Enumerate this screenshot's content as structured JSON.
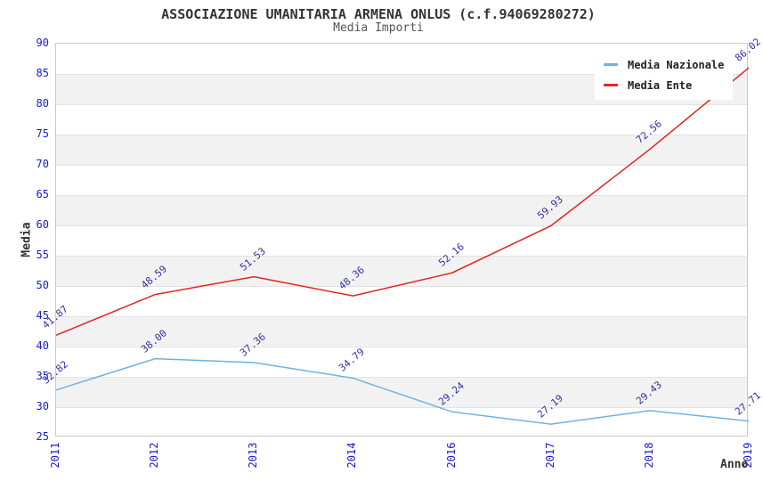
{
  "chart_data": {
    "type": "line",
    "title": "ASSOCIAZIONE UMANITARIA ARMENA ONLUS (c.f.94069280272)",
    "subtitle": "Media Importi",
    "xlabel": "Anno",
    "ylabel": "Media",
    "categories": [
      "2011",
      "2012",
      "2013",
      "2014",
      "2016",
      "2017",
      "2018",
      "2019"
    ],
    "series": [
      {
        "name": "Media Nazionale",
        "color": "#6fb1e2",
        "values": [
          32.82,
          38.0,
          37.36,
          34.79,
          29.24,
          27.19,
          29.43,
          27.71
        ]
      },
      {
        "name": "Media Ente",
        "color": "#e42320",
        "values": [
          41.87,
          48.59,
          51.53,
          48.36,
          52.16,
          59.93,
          72.56,
          86.02
        ]
      }
    ],
    "ylim": [
      25,
      90
    ],
    "ytick_step": 5,
    "yticks": [
      25,
      30,
      35,
      40,
      45,
      50,
      55,
      60,
      65,
      70,
      75,
      80,
      85,
      90
    ],
    "grid": "horizontal-bands-alternating",
    "legend_position": "top-right",
    "value_label_decimals": 2
  },
  "colors": {
    "band_fill": "#f2f2f2",
    "grid_line": "#e3e3e3",
    "plot_border": "#c9c9c9",
    "axis_tick_label": "#1a1acd",
    "value_label": "#32329f",
    "title_text": "#333333",
    "subtitle_text": "#555555",
    "legend_text": "#222222"
  }
}
